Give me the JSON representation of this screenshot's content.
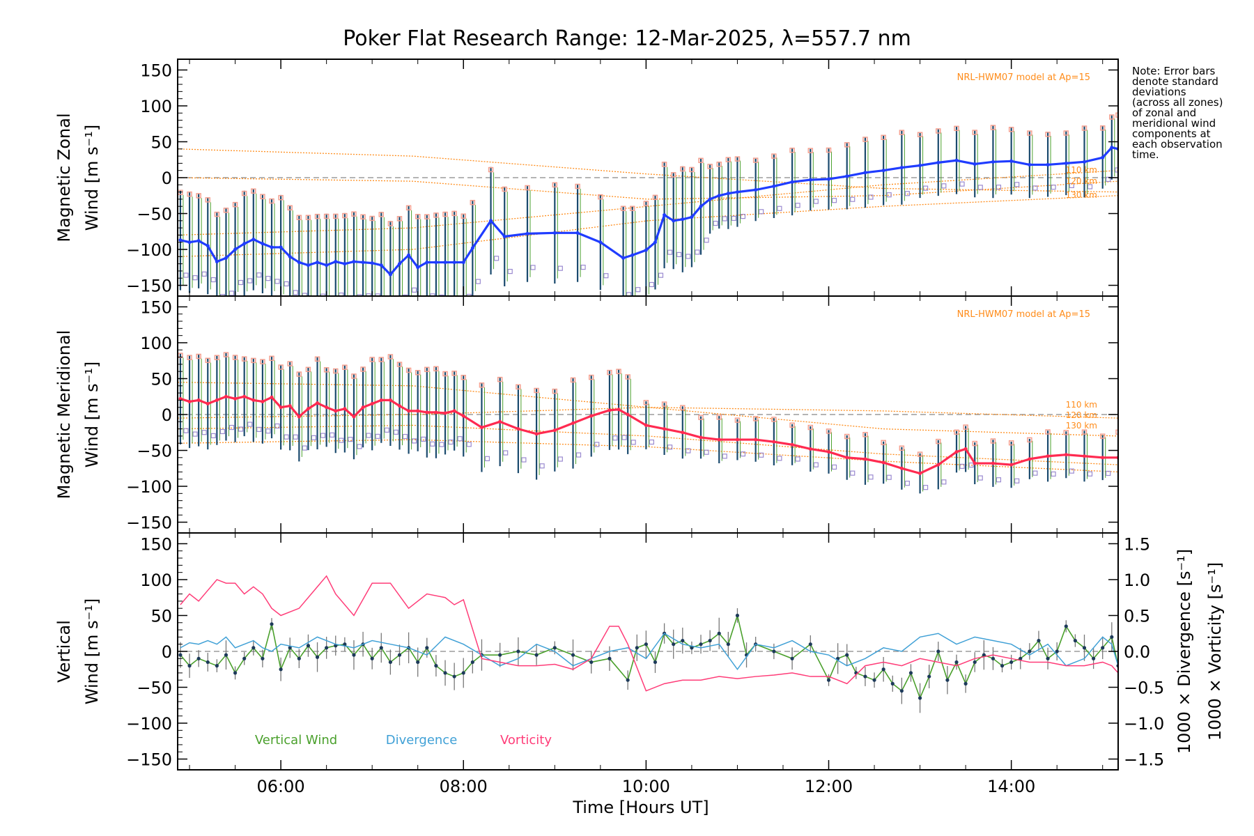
{
  "title": "Poker Flat Research Range: 12-Mar-2025, λ=557.7 nm",
  "note": [
    "Note: Error bars",
    "denote standard",
    "deviations",
    "(across all zones)",
    "of zonal and",
    "meridional wind",
    "components at",
    "each observation",
    "time."
  ],
  "xlabel": "Time [Hours UT]",
  "x_ticks": [
    "06:00",
    "08:00",
    "10:00",
    "12:00",
    "14:00"
  ],
  "y_ticks": [
    "150",
    "100",
    "50",
    "0",
    "−50",
    "−100",
    "−150"
  ],
  "right_ticks": [
    "1.5",
    "1.0",
    "0.5",
    "0.0",
    "−0.5",
    "−1.0",
    "−1.5"
  ],
  "model_label": "NRL-HWM07 model at Ap=15",
  "altitudes": [
    "110 km",
    "120 km",
    "130 km"
  ],
  "colors": {
    "zonal": "#1f3cff",
    "meridional": "#ff2a50",
    "vertical": "#4aa02c",
    "divergence": "#3fa0d6",
    "vorticity": "#ff3c78",
    "model": "#ff8c1a",
    "zones": "#f4a090",
    "zones2": "#9a8ad0"
  },
  "chart_data": [
    {
      "type": "line",
      "ylabel": [
        "Magnetic Zonal",
        "Wind [m s⁻¹]"
      ],
      "xlim": [
        4.87,
        15.17
      ],
      "ylim": [
        -165,
        165
      ],
      "series": [
        {
          "name": "",
          "x": [
            4.9,
            5.0,
            5.1,
            5.2,
            5.3,
            5.4,
            5.5,
            5.6,
            5.7,
            5.8,
            5.9,
            6.0,
            6.1,
            6.2,
            6.3,
            6.4,
            6.5,
            6.6,
            6.7,
            6.8,
            6.9,
            7.0,
            7.1,
            7.2,
            7.3,
            7.4,
            7.5,
            7.6,
            7.7,
            7.8,
            7.9,
            8.0,
            8.1,
            8.3,
            8.45,
            8.7,
            9.0,
            9.25,
            9.5,
            9.75,
            9.85,
            10.0,
            10.1,
            10.2,
            10.3,
            10.4,
            10.5,
            10.6,
            10.7,
            10.8,
            10.9,
            11.0,
            11.2,
            11.4,
            11.6,
            11.8,
            12.0,
            12.2,
            12.4,
            12.6,
            12.8,
            13.0,
            13.2,
            13.4,
            13.6,
            13.8,
            14.0,
            14.2,
            14.4,
            14.6,
            14.8,
            15.0,
            15.1,
            15.17
          ],
          "y": [
            -87,
            -90,
            -88,
            -95,
            -117,
            -112,
            -100,
            -92,
            -86,
            -92,
            -97,
            -97,
            -110,
            -118,
            -122,
            -118,
            -122,
            -117,
            -120,
            -117,
            -118,
            -119,
            -122,
            -135,
            -120,
            -108,
            -125,
            -118,
            -118,
            -118,
            -118,
            -118,
            -98,
            -60,
            -82,
            -78,
            -77,
            -77,
            -90,
            -112,
            -108,
            -101,
            -90,
            -52,
            -60,
            -58,
            -55,
            -40,
            -30,
            -25,
            -22,
            -20,
            -17,
            -12,
            -6,
            -3,
            -2,
            2,
            7,
            10,
            14,
            17,
            21,
            24,
            19,
            22,
            23,
            18,
            18,
            20,
            22,
            28,
            42,
            40
          ]
        }
      ]
    },
    {
      "type": "line",
      "ylabel": [
        "Magnetic Meridional",
        "Wind [m s⁻¹]"
      ],
      "xlim": [
        4.87,
        15.17
      ],
      "ylim": [
        -165,
        165
      ],
      "series": [
        {
          "name": "",
          "x": [
            4.9,
            5.0,
            5.1,
            5.2,
            5.3,
            5.4,
            5.5,
            5.6,
            5.7,
            5.8,
            5.9,
            6.0,
            6.1,
            6.2,
            6.3,
            6.4,
            6.5,
            6.6,
            6.7,
            6.8,
            6.9,
            7.0,
            7.1,
            7.2,
            7.3,
            7.4,
            7.5,
            7.6,
            7.7,
            7.8,
            7.9,
            8.0,
            8.2,
            8.4,
            8.6,
            8.8,
            9.0,
            9.2,
            9.4,
            9.6,
            9.7,
            9.8,
            10.0,
            10.2,
            10.4,
            10.6,
            10.8,
            11.0,
            11.2,
            11.4,
            11.6,
            11.8,
            12.0,
            12.2,
            12.4,
            12.6,
            12.8,
            13.0,
            13.2,
            13.4,
            13.5,
            13.6,
            13.8,
            14.0,
            14.2,
            14.4,
            14.6,
            14.8,
            15.0,
            15.17
          ],
          "y": [
            22,
            18,
            20,
            15,
            20,
            25,
            22,
            25,
            20,
            18,
            24,
            10,
            12,
            -3,
            8,
            16,
            10,
            5,
            8,
            -3,
            10,
            15,
            20,
            20,
            12,
            5,
            5,
            3,
            3,
            2,
            5,
            -2,
            -18,
            -10,
            -20,
            -27,
            -22,
            -12,
            -2,
            6,
            7,
            0,
            -15,
            -20,
            -25,
            -32,
            -35,
            -35,
            -35,
            -38,
            -42,
            -48,
            -52,
            -60,
            -62,
            -67,
            -75,
            -82,
            -70,
            -52,
            -48,
            -68,
            -68,
            -70,
            -62,
            -58,
            -56,
            -58,
            -60,
            -60
          ]
        }
      ]
    },
    {
      "type": "line",
      "ylabel": [
        "Vertical",
        "Wind [m s⁻¹]"
      ],
      "y2label": "1000 × Divergence [s⁻¹]",
      "y3label": "1000 × Vorticity [s⁻¹]",
      "xlim": [
        4.87,
        15.17
      ],
      "ylim": [
        -165,
        165
      ],
      "y2lim": [
        -1.65,
        1.65
      ],
      "series": [
        {
          "name": "Vertical Wind",
          "axis": "left",
          "x": [
            4.9,
            5.0,
            5.1,
            5.2,
            5.3,
            5.4,
            5.5,
            5.6,
            5.7,
            5.8,
            5.9,
            6.0,
            6.1,
            6.2,
            6.3,
            6.4,
            6.5,
            6.6,
            6.7,
            6.8,
            6.9,
            7.0,
            7.1,
            7.2,
            7.3,
            7.4,
            7.5,
            7.6,
            7.7,
            7.8,
            7.9,
            8.0,
            8.1,
            8.2,
            8.4,
            8.6,
            8.8,
            9.0,
            9.2,
            9.4,
            9.6,
            9.8,
            9.9,
            10.0,
            10.1,
            10.2,
            10.3,
            10.4,
            10.5,
            10.6,
            10.7,
            10.8,
            10.9,
            11.0,
            11.1,
            11.2,
            11.4,
            11.6,
            11.8,
            12.0,
            12.1,
            12.2,
            12.3,
            12.4,
            12.5,
            12.6,
            12.7,
            12.8,
            12.9,
            13.0,
            13.1,
            13.2,
            13.3,
            13.4,
            13.5,
            13.6,
            13.7,
            13.8,
            13.9,
            14.0,
            14.1,
            14.2,
            14.3,
            14.4,
            14.5,
            14.6,
            14.7,
            14.8,
            14.9,
            15.0,
            15.1,
            15.17
          ],
          "y": [
            -5,
            -20,
            -10,
            -15,
            -20,
            -5,
            -30,
            -10,
            5,
            -10,
            38,
            -25,
            5,
            -10,
            8,
            -8,
            5,
            8,
            10,
            -5,
            10,
            -10,
            5,
            -15,
            -5,
            5,
            -15,
            5,
            -20,
            -30,
            -35,
            -30,
            -15,
            -5,
            -5,
            0,
            -5,
            5,
            -5,
            -15,
            -10,
            -40,
            5,
            10,
            -15,
            25,
            10,
            15,
            5,
            10,
            15,
            25,
            10,
            50,
            -5,
            10,
            0,
            -10,
            10,
            -40,
            -10,
            -5,
            -30,
            -35,
            -40,
            -25,
            -45,
            -55,
            -30,
            -65,
            -35,
            0,
            -40,
            -15,
            -45,
            -15,
            -5,
            -10,
            -20,
            -15,
            -10,
            0,
            15,
            -10,
            0,
            35,
            15,
            5,
            -10,
            5,
            20,
            -20
          ]
        },
        {
          "name": "Divergence",
          "axis": "right",
          "x": [
            4.9,
            5.0,
            5.1,
            5.2,
            5.3,
            5.4,
            5.5,
            5.6,
            5.7,
            5.8,
            5.9,
            6.0,
            6.2,
            6.4,
            6.6,
            6.8,
            7.0,
            7.2,
            7.4,
            7.6,
            7.8,
            8.0,
            8.2,
            8.4,
            8.6,
            8.8,
            9.0,
            9.2,
            9.4,
            9.6,
            9.8,
            10.0,
            10.2,
            10.4,
            10.6,
            10.8,
            11.0,
            11.2,
            11.4,
            11.6,
            11.8,
            12.0,
            12.2,
            12.4,
            12.6,
            12.8,
            13.0,
            13.2,
            13.4,
            13.6,
            13.8,
            14.0,
            14.2,
            14.4,
            14.6,
            14.8,
            15.0,
            15.1,
            15.17
          ],
          "y": [
            0.05,
            0.12,
            0.1,
            0.15,
            0.1,
            0.2,
            0.05,
            0.1,
            0.15,
            0.05,
            0.0,
            0.1,
            0.05,
            0.2,
            0.1,
            0.05,
            0.15,
            0.1,
            0.05,
            -0.05,
            0.2,
            0.1,
            -0.05,
            -0.2,
            -0.1,
            0.1,
            0.0,
            -0.2,
            -0.1,
            0.0,
            0.05,
            -0.1,
            0.25,
            0.1,
            0.05,
            0.1,
            -0.25,
            0.1,
            0.05,
            0.15,
            0.0,
            -0.05,
            -0.2,
            -0.1,
            0.05,
            0.0,
            0.2,
            0.25,
            0.1,
            0.2,
            0.15,
            0.1,
            -0.05,
            0.1,
            -0.2,
            -0.1,
            0.2,
            0.1,
            -0.2
          ]
        },
        {
          "name": "Vorticity",
          "axis": "right",
          "x": [
            4.9,
            5.0,
            5.1,
            5.2,
            5.3,
            5.4,
            5.5,
            5.6,
            5.7,
            5.8,
            5.9,
            6.0,
            6.2,
            6.4,
            6.5,
            6.6,
            6.8,
            7.0,
            7.2,
            7.4,
            7.6,
            7.8,
            7.9,
            8.0,
            8.2,
            8.4,
            8.6,
            8.8,
            9.0,
            9.2,
            9.4,
            9.6,
            9.7,
            9.8,
            10.0,
            10.2,
            10.4,
            10.6,
            10.8,
            11.0,
            11.2,
            11.4,
            11.6,
            11.8,
            12.0,
            12.2,
            12.4,
            12.6,
            12.8,
            13.0,
            13.2,
            13.4,
            13.6,
            13.8,
            14.0,
            14.2,
            14.4,
            14.6,
            14.8,
            15.0,
            15.1,
            15.17
          ],
          "y": [
            0.65,
            0.8,
            0.7,
            0.85,
            1.0,
            0.95,
            0.95,
            0.8,
            0.9,
            0.8,
            0.6,
            0.5,
            0.6,
            0.9,
            1.05,
            0.8,
            0.5,
            0.95,
            0.95,
            0.6,
            0.8,
            0.75,
            0.65,
            0.72,
            -0.1,
            -0.15,
            -0.2,
            -0.2,
            -0.18,
            -0.25,
            -0.1,
            0.35,
            0.35,
            0.1,
            -0.55,
            -0.45,
            -0.4,
            -0.4,
            -0.35,
            -0.38,
            -0.35,
            -0.33,
            -0.3,
            -0.35,
            -0.35,
            -0.45,
            -0.2,
            -0.15,
            -0.2,
            -0.1,
            -0.15,
            -0.2,
            -0.1,
            -0.05,
            -0.1,
            -0.15,
            -0.15,
            -0.2,
            -0.2,
            -0.15,
            -0.2,
            -0.3
          ]
        }
      ]
    }
  ]
}
